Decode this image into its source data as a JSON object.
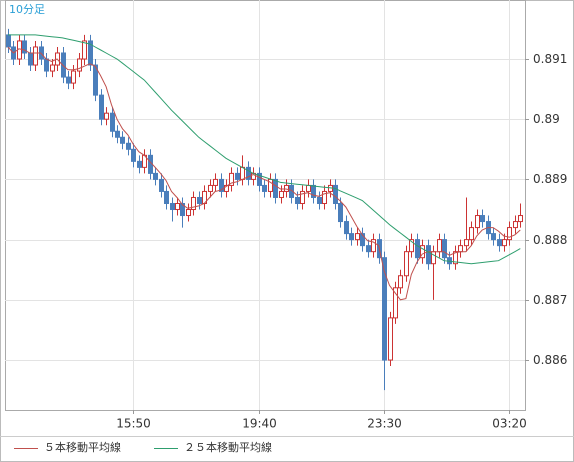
{
  "chart_data": {
    "type": "candlestick",
    "title": "10分足",
    "categories": [
      null,
      null,
      null,
      null,
      null,
      null,
      null,
      null,
      null,
      null,
      null,
      null,
      null,
      null,
      null,
      null,
      null,
      null,
      null,
      null,
      null,
      null,
      null,
      "15:50",
      null,
      null,
      null,
      null,
      null,
      null,
      null,
      null,
      null,
      null,
      null,
      null,
      null,
      null,
      null,
      null,
      null,
      null,
      null,
      null,
      null,
      null,
      "19:40",
      null,
      null,
      null,
      null,
      null,
      null,
      null,
      null,
      null,
      null,
      null,
      null,
      null,
      null,
      null,
      null,
      null,
      null,
      null,
      null,
      null,
      null,
      "23:30",
      null,
      null,
      null,
      null,
      null,
      null,
      null,
      null,
      null,
      null,
      null,
      null,
      null,
      null,
      null,
      null,
      null,
      null,
      null,
      null,
      null,
      null,
      "03:20",
      null,
      null
    ],
    "open": [
      0.8914,
      0.8912,
      0.891,
      0.8913,
      0.8911,
      0.8909,
      0.8912,
      0.891,
      0.8908,
      0.8909,
      0.8911,
      0.8907,
      0.8906,
      0.8908,
      0.891,
      0.8913,
      0.8909,
      0.8904,
      0.89,
      0.8901,
      0.8898,
      0.8897,
      0.8896,
      0.8895,
      0.8893,
      0.8892,
      0.8894,
      0.8891,
      0.889,
      0.8888,
      0.8886,
      0.8885,
      0.8886,
      0.8884,
      0.8885,
      0.8887,
      0.8886,
      0.8888,
      0.8889,
      0.889,
      0.8888,
      0.8889,
      0.8891,
      0.889,
      0.8892,
      0.889,
      0.8891,
      0.8889,
      0.8888,
      0.889,
      0.8887,
      0.8888,
      0.8889,
      0.8887,
      0.8886,
      0.8888,
      0.8889,
      0.8887,
      0.8886,
      0.8888,
      0.8889,
      0.8886,
      0.8883,
      0.8881,
      0.888,
      0.8881,
      0.8879,
      0.8878,
      0.888,
      0.8877,
      0.886,
      0.8867,
      0.8872,
      0.8874,
      0.8878,
      0.888,
      0.8877,
      0.8879,
      0.8876,
      0.8878,
      0.888,
      0.8877,
      0.8876,
      0.8878,
      0.8879,
      0.888,
      0.8882,
      0.8884,
      0.8883,
      0.8881,
      0.888,
      0.8879,
      0.888,
      0.8882,
      0.8883
    ],
    "high": [
      0.8915,
      0.8913,
      0.8914,
      0.8914,
      0.8912,
      0.8913,
      0.8913,
      0.8911,
      0.891,
      0.8912,
      0.8912,
      0.8908,
      0.8909,
      0.8911,
      0.8914,
      0.8914,
      0.891,
      0.8905,
      0.8902,
      0.8902,
      0.8899,
      0.8898,
      0.8897,
      0.8896,
      0.8894,
      0.8895,
      0.8895,
      0.8892,
      0.8891,
      0.8889,
      0.8887,
      0.8887,
      0.8887,
      0.8886,
      0.8888,
      0.8888,
      0.8889,
      0.889,
      0.8891,
      0.8891,
      0.889,
      0.8892,
      0.8892,
      0.8894,
      0.8893,
      0.8892,
      0.8892,
      0.889,
      0.8891,
      0.8891,
      0.8889,
      0.889,
      0.889,
      0.8888,
      0.8889,
      0.889,
      0.889,
      0.8888,
      0.8889,
      0.889,
      0.889,
      0.8887,
      0.8884,
      0.8882,
      0.8882,
      0.8882,
      0.888,
      0.8881,
      0.8881,
      0.8878,
      0.8868,
      0.8873,
      0.8875,
      0.8879,
      0.8881,
      0.8881,
      0.888,
      0.888,
      0.8879,
      0.8881,
      0.8881,
      0.8878,
      0.8879,
      0.888,
      0.8887,
      0.8883,
      0.8885,
      0.8885,
      0.8884,
      0.8882,
      0.8881,
      0.8881,
      0.8883,
      0.8884,
      0.8886
    ],
    "low": [
      0.8911,
      0.8909,
      0.8909,
      0.891,
      0.8908,
      0.8908,
      0.8909,
      0.8907,
      0.8907,
      0.8908,
      0.8906,
      0.8905,
      0.8905,
      0.8907,
      0.8909,
      0.8908,
      0.8903,
      0.8899,
      0.8899,
      0.8897,
      0.8896,
      0.8895,
      0.8894,
      0.8892,
      0.8891,
      0.8891,
      0.889,
      0.8889,
      0.8887,
      0.8885,
      0.8883,
      0.8884,
      0.8882,
      0.8883,
      0.8884,
      0.8885,
      0.8885,
      0.8887,
      0.8888,
      0.8887,
      0.8887,
      0.8888,
      0.8889,
      0.8889,
      0.8889,
      0.8889,
      0.8888,
      0.8887,
      0.8887,
      0.8886,
      0.8886,
      0.8887,
      0.8886,
      0.8885,
      0.8885,
      0.8887,
      0.8886,
      0.8885,
      0.8885,
      0.8887,
      0.8885,
      0.8882,
      0.888,
      0.8879,
      0.8879,
      0.8878,
      0.8877,
      0.8877,
      0.8876,
      0.8855,
      0.8859,
      0.8866,
      0.8871,
      0.8873,
      0.8877,
      0.8876,
      0.8876,
      0.8875,
      0.887,
      0.8877,
      0.8876,
      0.8875,
      0.8875,
      0.8877,
      0.8878,
      0.8879,
      0.8881,
      0.8882,
      0.888,
      0.8879,
      0.8878,
      0.8878,
      0.8879,
      0.8881,
      0.8882
    ],
    "close": [
      0.8912,
      0.891,
      0.8913,
      0.8911,
      0.8909,
      0.8912,
      0.891,
      0.8908,
      0.8909,
      0.8911,
      0.8907,
      0.8906,
      0.8908,
      0.891,
      0.8913,
      0.8909,
      0.8904,
      0.89,
      0.8901,
      0.8898,
      0.8897,
      0.8896,
      0.8895,
      0.8893,
      0.8892,
      0.8894,
      0.8891,
      0.889,
      0.8888,
      0.8886,
      0.8885,
      0.8886,
      0.8884,
      0.8885,
      0.8887,
      0.8886,
      0.8888,
      0.8889,
      0.889,
      0.8888,
      0.8889,
      0.8891,
      0.889,
      0.8892,
      0.889,
      0.8891,
      0.8889,
      0.8888,
      0.889,
      0.8887,
      0.8888,
      0.8889,
      0.8887,
      0.8886,
      0.8888,
      0.8889,
      0.8887,
      0.8886,
      0.8888,
      0.8889,
      0.8886,
      0.8883,
      0.8881,
      0.888,
      0.8881,
      0.8879,
      0.8878,
      0.888,
      0.8877,
      0.886,
      0.8867,
      0.8872,
      0.8874,
      0.8878,
      0.888,
      0.8877,
      0.8879,
      0.8876,
      0.8878,
      0.888,
      0.8877,
      0.8876,
      0.8878,
      0.8879,
      0.888,
      0.8882,
      0.8884,
      0.8883,
      0.8881,
      0.888,
      0.8879,
      0.888,
      0.8882,
      0.8883,
      0.8884
    ],
    "up_color": "#cc3333",
    "down_color": "#4a7ebb",
    "series": [
      {
        "name": "５本移動平均線",
        "color": "#c0504d",
        "values": [
          0.8912,
          0.8911,
          0.89117,
          0.89115,
          0.8911,
          0.8911,
          0.8911,
          0.891,
          0.89096,
          0.891,
          0.8909,
          0.89082,
          0.89082,
          0.89084,
          0.89088,
          0.89092,
          0.89088,
          0.89072,
          0.89054,
          0.89024,
          0.89,
          0.88984,
          0.88974,
          0.88958,
          0.88946,
          0.8894,
          0.8893,
          0.8892,
          0.8891,
          0.88898,
          0.8888,
          0.8887,
          0.88858,
          0.88852,
          0.88854,
          0.88856,
          0.8886,
          0.8887,
          0.8888,
          0.88882,
          0.88888,
          0.88894,
          0.88896,
          0.889,
          0.88904,
          0.88908,
          0.88904,
          0.889,
          0.88896,
          0.8889,
          0.88884,
          0.88884,
          0.88882,
          0.88874,
          0.88876,
          0.88878,
          0.88874,
          0.88872,
          0.88876,
          0.88878,
          0.88872,
          0.88864,
          0.88854,
          0.88838,
          0.88822,
          0.88808,
          0.88798,
          0.88796,
          0.8879,
          0.88748,
          0.88724,
          0.88712,
          0.887,
          0.88702,
          0.88742,
          0.88762,
          0.88776,
          0.8878,
          0.8878,
          0.8878,
          0.8878,
          0.88774,
          0.88778,
          0.8878,
          0.8878,
          0.8879,
          0.88806,
          0.88816,
          0.8882,
          0.8882,
          0.88814,
          0.88806,
          0.88804,
          0.88808,
          0.88816
        ]
      },
      {
        "name": "２５本移動平均線",
        "color": "#2e9e6e",
        "values": [
          0.8914,
          0.8914,
          0.8914,
          0.8914,
          0.8914,
          0.8914,
          0.89139,
          0.89138,
          0.89137,
          0.89136,
          0.89135,
          0.89133,
          0.89131,
          0.89129,
          0.89127,
          0.89125,
          0.8912,
          0.89115,
          0.8911,
          0.89105,
          0.891,
          0.89093,
          0.89086,
          0.89079,
          0.89072,
          0.89065,
          0.89055,
          0.89045,
          0.89035,
          0.89025,
          0.89015,
          0.89006,
          0.88997,
          0.88988,
          0.88979,
          0.8897,
          0.88963,
          0.88956,
          0.88949,
          0.88942,
          0.88935,
          0.8893,
          0.88925,
          0.8892,
          0.88915,
          0.8891,
          0.88907,
          0.88904,
          0.88901,
          0.88898,
          0.88895,
          0.88894,
          0.88893,
          0.88892,
          0.88891,
          0.8889,
          0.88889,
          0.88888,
          0.88887,
          0.88886,
          0.88885,
          0.88881,
          0.88877,
          0.88873,
          0.88869,
          0.88865,
          0.88857,
          0.88849,
          0.88841,
          0.88833,
          0.88825,
          0.88818,
          0.88811,
          0.88804,
          0.88797,
          0.8879,
          0.88785,
          0.8878,
          0.88775,
          0.8877,
          0.88765,
          0.88764,
          0.88763,
          0.88762,
          0.88761,
          0.8876,
          0.88761,
          0.88762,
          0.88763,
          0.88764,
          0.88765,
          0.8877,
          0.88775,
          0.8878,
          0.88785
        ]
      }
    ],
    "ylim": [
      0.88517,
      0.89198
    ],
    "yticks": [
      0.886,
      0.887,
      0.888,
      0.889,
      0.89,
      0.891
    ],
    "grid": true
  }
}
